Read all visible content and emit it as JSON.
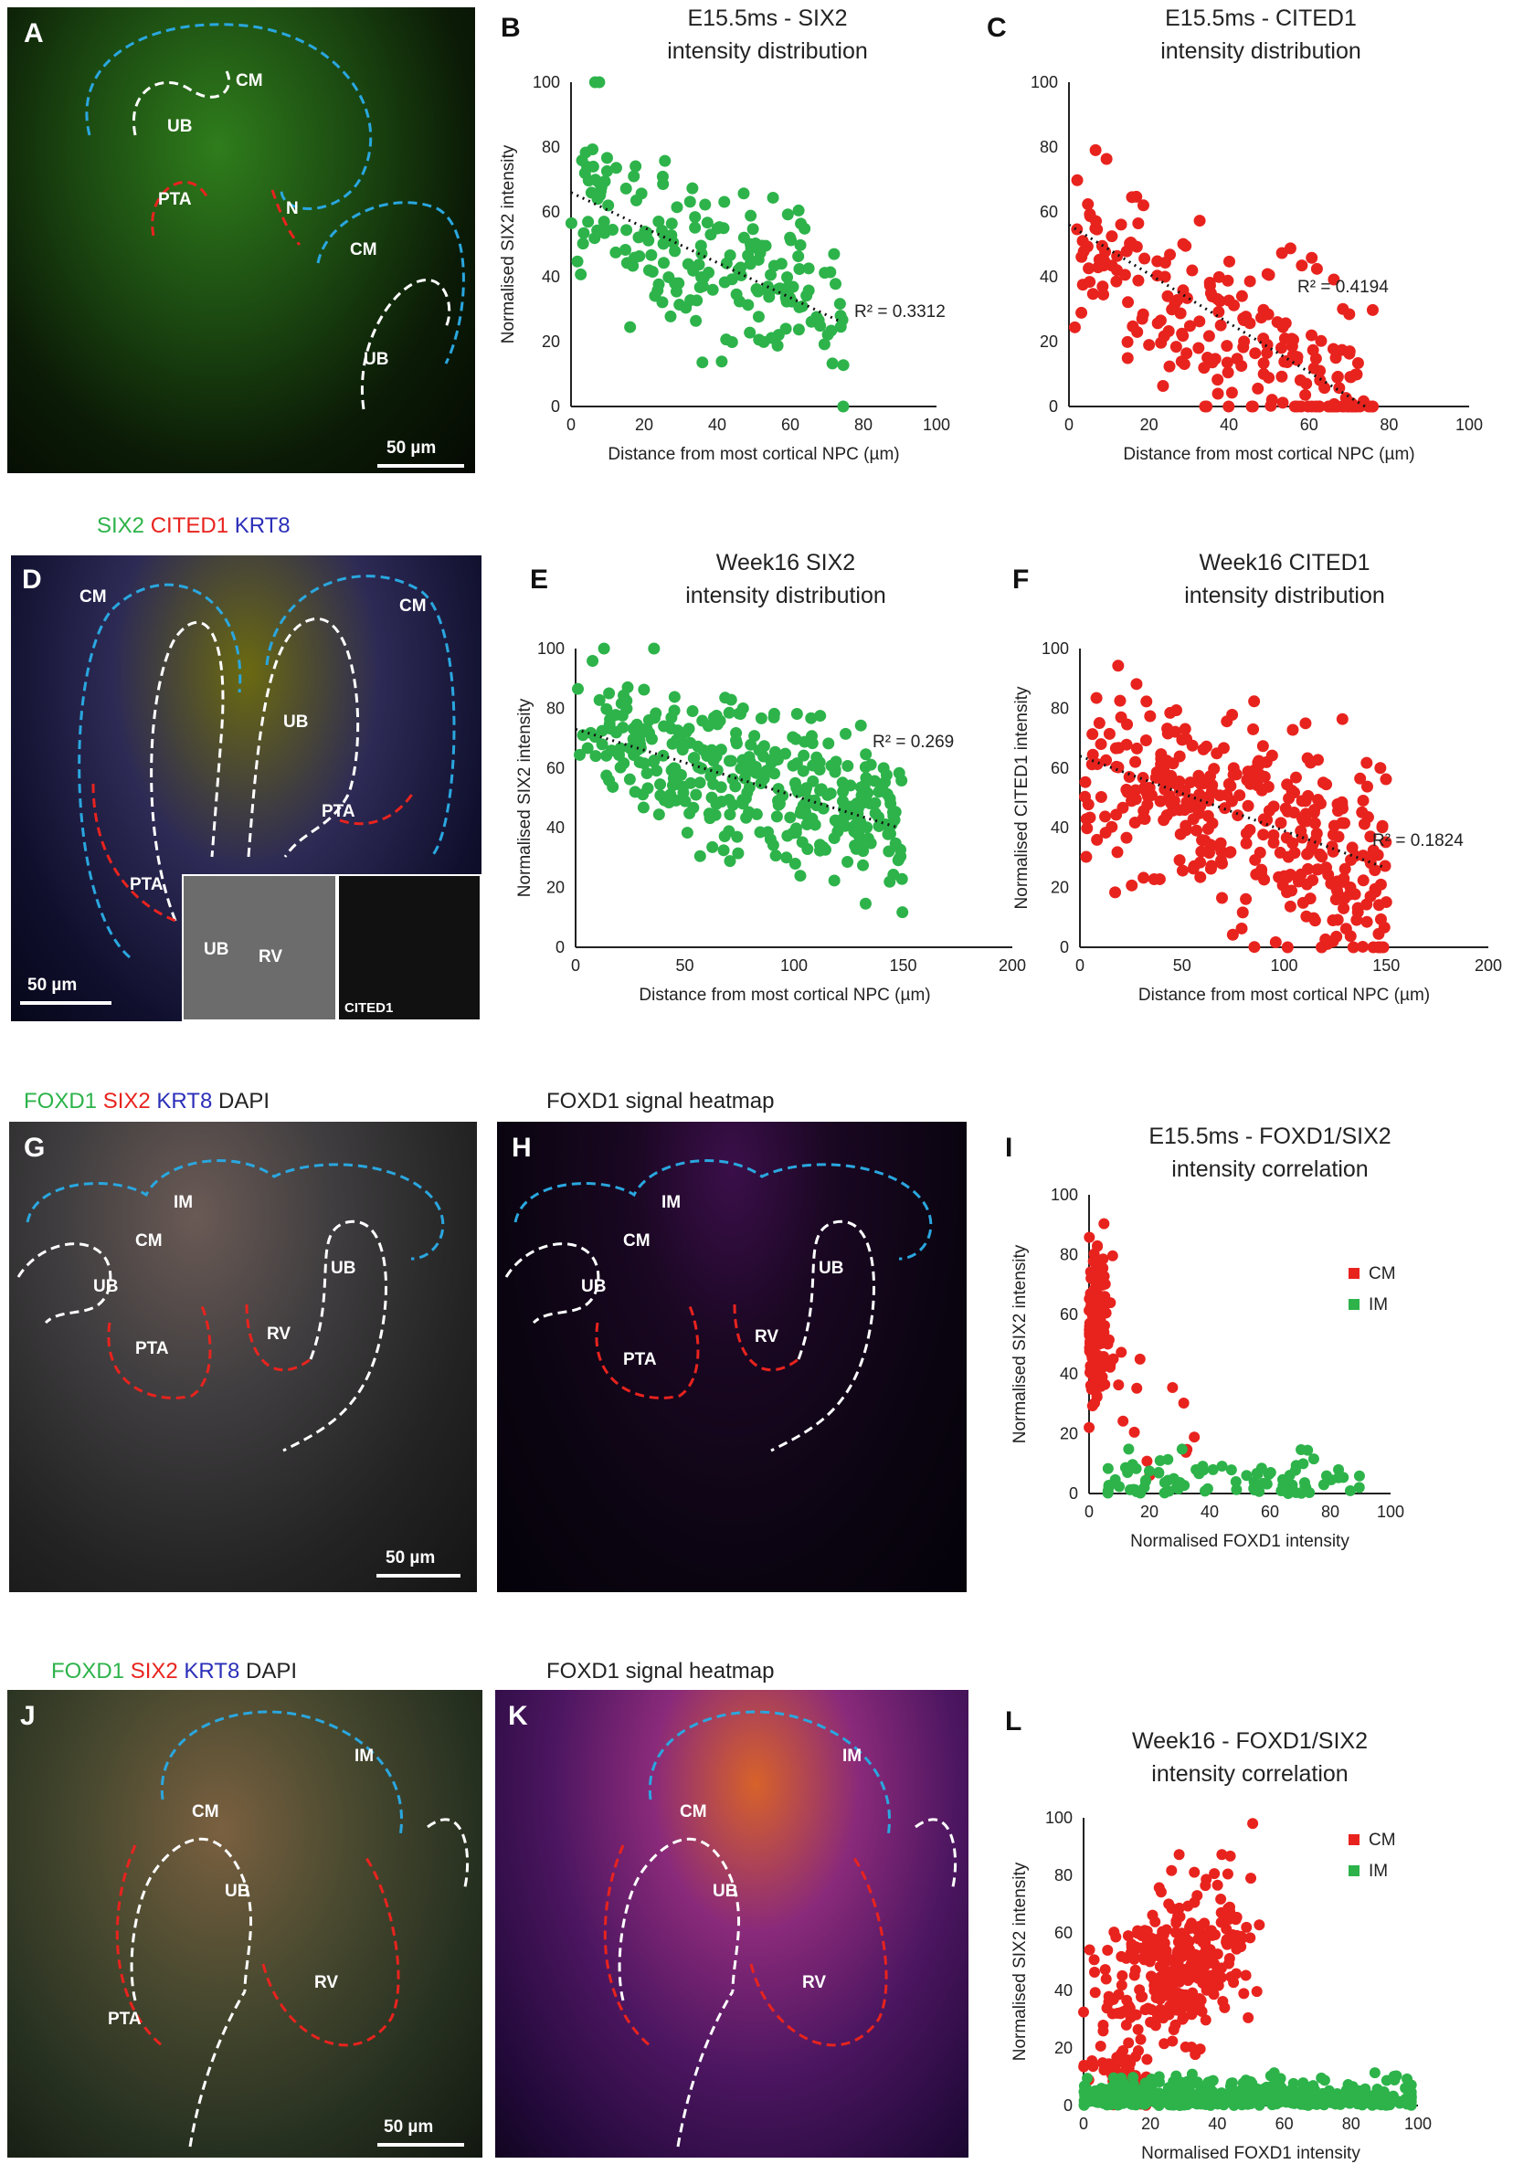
{
  "panels": {
    "A": "A",
    "B": "B",
    "C": "C",
    "D": "D",
    "E": "E",
    "F": "F",
    "G": "G",
    "H": "H",
    "I": "I",
    "J": "J",
    "K": "K",
    "L": "L"
  },
  "legend_d": [
    {
      "text": "SIX2",
      "color": "#2db34a"
    },
    {
      "text": "CITED1",
      "color": "#e8231e"
    },
    {
      "text": "KRT8",
      "color": "#2b2fb8"
    }
  ],
  "legend_g": [
    {
      "text": "FOXD1",
      "color": "#2db34a"
    },
    {
      "text": "SIX2",
      "color": "#e8231e"
    },
    {
      "text": "KRT8",
      "color": "#2b2fb8"
    },
    {
      "text": "DAPI",
      "color": "#222222"
    }
  ],
  "legend_j": [
    {
      "text": "FOXD1",
      "color": "#2db34a"
    },
    {
      "text": "SIX2",
      "color": "#e8231e"
    },
    {
      "text": "KRT8",
      "color": "#2b2fb8"
    },
    {
      "text": "DAPI",
      "color": "#222222"
    }
  ],
  "heatmap_title_h": "FOXD1 signal heatmap",
  "heatmap_title_k": "FOXD1 signal heatmap",
  "region_labels": {
    "a_cm1": "CM",
    "a_ub1": "UB",
    "a_pta": "PTA",
    "a_n": "N",
    "a_cm2": "CM",
    "a_ub2": "UB",
    "d_cm1": "CM",
    "d_cm2": "CM",
    "d_ub": "UB",
    "d_pta1": "PTA",
    "d_pta2": "PTA",
    "d_in_ub": "UB",
    "d_in_rv": "RV",
    "d_in_cited": "CITED1",
    "g_im": "IM",
    "g_cm": "CM",
    "g_ub1": "UB",
    "g_ub2": "UB",
    "g_pta": "PTA",
    "g_rv": "RV",
    "h_im": "IM",
    "h_cm": "CM",
    "h_ub1": "UB",
    "h_ub2": "UB",
    "h_pta": "PTA",
    "h_rv": "RV",
    "j_im": "IM",
    "j_cm": "CM",
    "j_ub": "UB",
    "j_rv": "RV",
    "j_pta": "PTA",
    "k_im": "IM",
    "k_cm": "CM",
    "k_ub": "UB",
    "k_rv": "RV"
  },
  "scale_bars": {
    "a": "50 µm",
    "d": "50 µm",
    "g": "50 µm",
    "j": "50 µm"
  },
  "colors": {
    "green": "#2db34a",
    "red": "#e8231e",
    "cm_outline": "#2aa7df",
    "ub_outline": "#ffffff",
    "pta_outline": "#e8231e"
  },
  "chart_data": [
    {
      "type": "scatter",
      "title": "E15.5ms - SIX2 intensity distribution",
      "title_lines": [
        "E15.5ms - SIX2",
        "intensity distribution"
      ],
      "xlabel": "Distance from most cortical NPC (µm)",
      "ylabel": "Normalised SIX2 intensity",
      "xlim": [
        0,
        100
      ],
      "ylim": [
        0,
        100
      ],
      "xticks": [
        0,
        20,
        40,
        60,
        80,
        100
      ],
      "yticks": [
        0,
        20,
        40,
        60,
        80,
        100
      ],
      "color": "#2db34a",
      "r2_label": "R² = 0.3312",
      "trend": {
        "x0": 0,
        "y0": 66,
        "x1": 74,
        "y1": 26
      },
      "seed": 11,
      "n": 190,
      "gen": {
        "xmax": 75,
        "a": 66,
        "b": -0.54,
        "sd": 13
      }
    },
    {
      "type": "scatter",
      "title": "E15.5ms - CITED1 intensity distribution",
      "title_lines": [
        "E15.5ms - CITED1",
        "intensity distribution"
      ],
      "xlabel": "Distance from most cortical NPC (µm)",
      "ylabel": "",
      "xlim": [
        0,
        100
      ],
      "ylim": [
        0,
        100
      ],
      "xticks": [
        0,
        20,
        40,
        60,
        80,
        100
      ],
      "yticks": [
        0,
        20,
        40,
        60,
        80,
        100
      ],
      "color": "#e8231e",
      "r2_label": "R² = 0.4194",
      "trend": {
        "x0": 0,
        "y0": 56,
        "x1": 74,
        "y1": 0
      },
      "seed": 23,
      "n": 230,
      "gen": {
        "xmax": 76,
        "a": 55,
        "b": -0.75,
        "sd": 14
      }
    },
    {
      "type": "scatter",
      "title": "Week16 SIX2 intensity distribution",
      "title_lines": [
        "Week16 SIX2",
        "intensity distribution"
      ],
      "xlabel": "Distance from most cortical NPC (µm)",
      "ylabel": "Normalised SIX2 intensity",
      "xlim": [
        0,
        200
      ],
      "ylim": [
        0,
        100
      ],
      "xticks": [
        0,
        50,
        100,
        150,
        200
      ],
      "yticks": [
        0,
        20,
        40,
        60,
        80,
        100
      ],
      "color": "#2db34a",
      "r2_label": "R² = 0.269",
      "trend": {
        "x0": 0,
        "y0": 73,
        "x1": 148,
        "y1": 40
      },
      "seed": 37,
      "n": 360,
      "gen": {
        "xmax": 150,
        "a": 73,
        "b": -0.22,
        "sd": 12
      }
    },
    {
      "type": "scatter",
      "title": "Week16 CITED1 intensity distribution",
      "title_lines": [
        "Week16 CITED1",
        "intensity distribution"
      ],
      "xlabel": "Distance from most cortical NPC (µm)",
      "ylabel": "Normalised CITED1 intensity",
      "xlim": [
        0,
        200
      ],
      "ylim": [
        0,
        100
      ],
      "xticks": [
        0,
        50,
        100,
        150,
        200
      ],
      "yticks": [
        0,
        20,
        40,
        60,
        80,
        100
      ],
      "color": "#e8231e",
      "r2_label": "R² = 0.1824",
      "trend": {
        "x0": 0,
        "y0": 64,
        "x1": 148,
        "y1": 27
      },
      "seed": 53,
      "n": 360,
      "gen": {
        "xmax": 150,
        "a": 62,
        "b": -0.25,
        "sd": 17
      }
    },
    {
      "type": "scatter",
      "title": "E15.5ms - FOXD1/SIX2 intensity correlation",
      "title_lines": [
        "E15.5ms - FOXD1/SIX2",
        "intensity correlation"
      ],
      "xlabel": "Normalised FOXD1 intensity",
      "ylabel": "Normalised SIX2 intensity",
      "xlim": [
        0,
        100
      ],
      "ylim": [
        0,
        100
      ],
      "xticks": [
        0,
        20,
        40,
        60,
        80,
        100
      ],
      "yticks": [
        0,
        20,
        40,
        60,
        80,
        100
      ],
      "series": [
        {
          "name": "CM",
          "color": "#e8231e",
          "seed": 71,
          "n": 170,
          "gen": {
            "mode": "cm_e15"
          }
        },
        {
          "name": "IM",
          "color": "#2db34a",
          "seed": 83,
          "n": 90,
          "gen": {
            "mode": "im_e15"
          }
        }
      ]
    },
    {
      "type": "scatter",
      "title": "Week16 - FOXD1/SIX2 intensity correlation",
      "title_lines": [
        "Week16 - FOXD1/SIX2",
        "intensity correlation"
      ],
      "xlabel": "Normalised FOXD1 intensity",
      "ylabel": "Normalised SIX2 intensity",
      "xlim": [
        0,
        100
      ],
      "ylim": [
        0,
        100
      ],
      "xticks": [
        0,
        20,
        40,
        60,
        80,
        100
      ],
      "yticks": [
        0,
        20,
        40,
        60,
        80,
        100
      ],
      "series": [
        {
          "name": "CM",
          "color": "#e8231e",
          "seed": 97,
          "n": 380,
          "gen": {
            "mode": "cm_w16"
          }
        },
        {
          "name": "IM",
          "color": "#2db34a",
          "seed": 101,
          "n": 520,
          "gen": {
            "mode": "im_w16"
          }
        }
      ]
    }
  ]
}
